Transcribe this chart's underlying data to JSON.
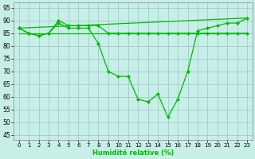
{
  "xlabel": "Humidité relative (%)",
  "bg_color": "#c8eee8",
  "grid_color": "#a0cccc",
  "line_color": "#00bb00",
  "xlim": [
    -0.5,
    23.5
  ],
  "ylim": [
    43,
    97
  ],
  "yticks": [
    45,
    50,
    55,
    60,
    65,
    70,
    75,
    80,
    85,
    90,
    95
  ],
  "xticks": [
    0,
    1,
    2,
    3,
    4,
    5,
    6,
    7,
    8,
    9,
    10,
    11,
    12,
    13,
    14,
    15,
    16,
    17,
    18,
    19,
    20,
    21,
    22,
    23
  ],
  "diag_line_x": [
    0,
    23
  ],
  "diag_line_y": [
    87,
    91
  ],
  "flat_line_x": [
    0,
    23
  ],
  "flat_line_y": [
    85,
    85
  ],
  "upper_curve_x": [
    0,
    1,
    2,
    3,
    4,
    5,
    6,
    7,
    8,
    9,
    10,
    11,
    12,
    13,
    14,
    15,
    16,
    17,
    18,
    19,
    20,
    21,
    22,
    23
  ],
  "upper_curve_y": [
    87,
    85,
    84,
    85,
    90,
    88,
    88,
    88,
    88,
    85,
    85,
    85,
    85,
    85,
    85,
    85,
    85,
    85,
    85,
    85,
    85,
    85,
    85,
    85
  ],
  "lower_curve_x": [
    0,
    1,
    2,
    3,
    4,
    5,
    6,
    7,
    8,
    9,
    10,
    11,
    12,
    13,
    14,
    15,
    16,
    17,
    18,
    19,
    20,
    21,
    22,
    23
  ],
  "lower_curve_y": [
    87,
    85,
    84,
    85,
    89,
    87,
    87,
    87,
    81,
    70,
    68,
    68,
    59,
    58,
    61,
    52,
    59,
    70,
    86,
    87,
    88,
    89,
    89,
    91
  ]
}
